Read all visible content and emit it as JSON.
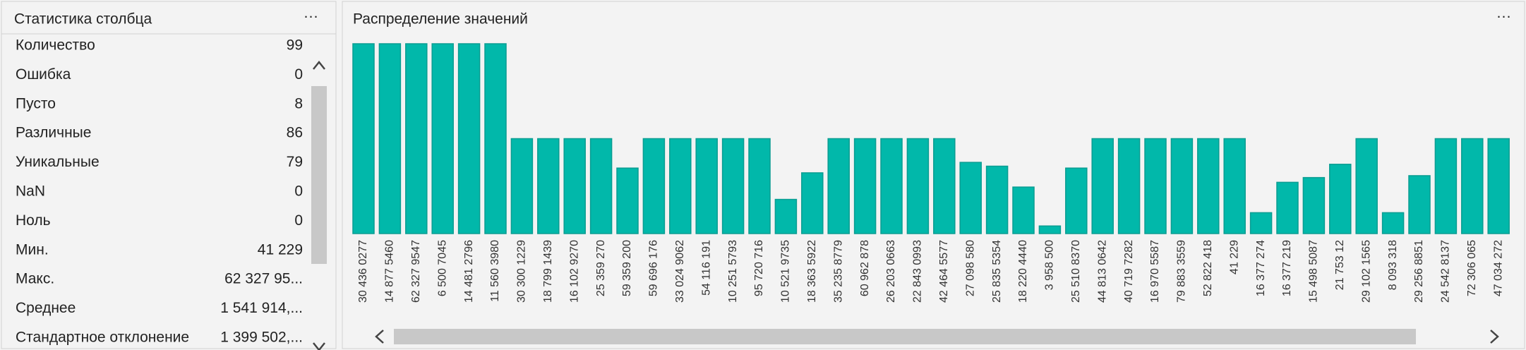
{
  "stats_panel": {
    "title": "Статистика столбца",
    "rows": [
      {
        "label": "Количество",
        "value": "99"
      },
      {
        "label": "Ошибка",
        "value": "0"
      },
      {
        "label": "Пусто",
        "value": "8"
      },
      {
        "label": "Различные",
        "value": "86"
      },
      {
        "label": "Уникальные",
        "value": "79"
      },
      {
        "label": "NaN",
        "value": "0"
      },
      {
        "label": "Ноль",
        "value": "0"
      },
      {
        "label": "Мин.",
        "value": "41 229"
      },
      {
        "label": "Макс.",
        "value": "62 327 95..."
      },
      {
        "label": "Среднее",
        "value": "1 541 914,..."
      },
      {
        "label": "Стандартное отклонение",
        "value": "1 399 502,..."
      }
    ]
  },
  "chart_data": {
    "type": "bar",
    "title": "Распределение значений",
    "categories": [
      "30 436 0277",
      "14 877 5460",
      "62 327 9547",
      "6 500 7045",
      "14 481 2796",
      "11 560 3980",
      "30 300 1229",
      "18 799 1439",
      "16 102 9270",
      "25 359 270",
      "59 359 200",
      "59 696 176",
      "33 024 9062",
      "54 116 191",
      "10 251 5793",
      "95 720 716",
      "10 521 9735",
      "18 363 5922",
      "35 235 8779",
      "60 962 878",
      "26 203 0663",
      "22 843 0993",
      "42 464 5577",
      "27 098 580",
      "25 835 5354",
      "18 220 4440",
      "3 958 500",
      "25 510 8370",
      "44 813 0642",
      "40 719 7282",
      "16 970 5587",
      "79 883 3559",
      "52 822 418",
      "41 229",
      "16 377 274",
      "16 377 219",
      "15 498 5087",
      "21 753 12",
      "29 102 1565",
      "8 093 318",
      "29 256 8851",
      "24 542 8137",
      "72 306 065",
      "47 034 272"
    ],
    "values": [
      2,
      2,
      2,
      2,
      2,
      2,
      1,
      1,
      1,
      1,
      0.69,
      1,
      1,
      1,
      1,
      1,
      0.36,
      0.64,
      1,
      1,
      1,
      1,
      1,
      0.75,
      0.71,
      0.49,
      0.08,
      0.69,
      1,
      1,
      1,
      1,
      1,
      1,
      0.22,
      0.54,
      0.59,
      0.73,
      1,
      0.22,
      0.61,
      1,
      1,
      1
    ],
    "color": "#01b8aa",
    "ylim": [
      0,
      2
    ]
  }
}
